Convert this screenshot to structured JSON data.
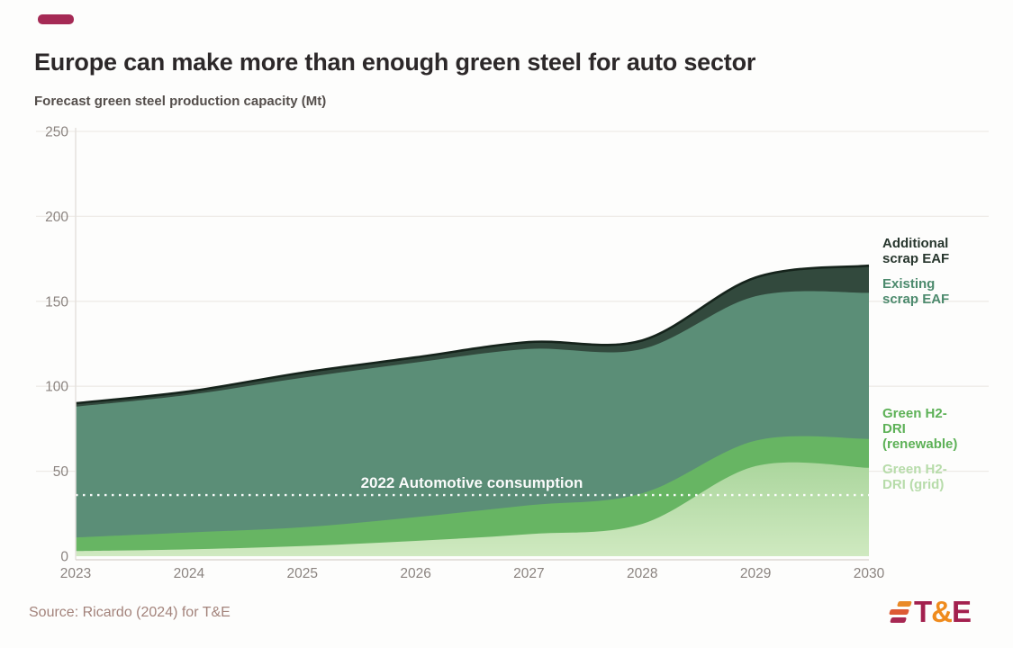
{
  "accent": {
    "dash_color": "#a52a55"
  },
  "title": "Europe can make more than enough green steel for auto sector",
  "chart_data": {
    "type": "area",
    "stacked": true,
    "title": "Forecast green steel production capacity (Mt)",
    "xlabel": "",
    "ylabel": "Forecast green steel production capacity (Mt)",
    "x": [
      2023,
      2024,
      2025,
      2026,
      2027,
      2028,
      2029,
      2030
    ],
    "series": [
      {
        "id": "grid",
        "name": "Green H2-DRI (grid)",
        "color": "#abd69d",
        "gradient_to": "#cfe9c0",
        "label_color": "#b7dcaa",
        "values": [
          3,
          4,
          6,
          9,
          13,
          19,
          53,
          52
        ]
      },
      {
        "id": "renewable",
        "name": "Green H2-DRI (renewable)",
        "color": "#67b563",
        "label_color": "#5db157",
        "values": [
          8,
          10,
          11,
          14,
          17,
          18,
          15,
          17
        ]
      },
      {
        "id": "existing",
        "name": "Existing scrap EAF",
        "color": "#5b8e77",
        "label_color": "#4c8a6d",
        "values": [
          77,
          81,
          88,
          91,
          92,
          85,
          85,
          86
        ]
      },
      {
        "id": "additional",
        "name": "Additional scrap EAF",
        "color": "#32493d",
        "label_color": "#27362d",
        "top_line_color": "#15231b",
        "values": [
          2,
          2,
          3,
          3,
          4,
          5,
          11,
          16
        ]
      }
    ],
    "ylim": [
      0,
      250
    ],
    "yticks": [
      0,
      50,
      100,
      150,
      200,
      250
    ],
    "grid": true,
    "legend_position": "right",
    "reference_line": {
      "label": "2022 Automotive consumption",
      "value": 36,
      "color": "#ffffff",
      "style": "dotted"
    }
  },
  "source": "Source: Ricardo (2024) for T&E",
  "logo": {
    "letter_t": "T",
    "ampersand": "&",
    "letter_e": "E",
    "primary_color": "#a3204e",
    "amp_color": "#ef8b1d",
    "bar_colors": [
      "#e98a28",
      "#dd5a35",
      "#a72853"
    ]
  }
}
